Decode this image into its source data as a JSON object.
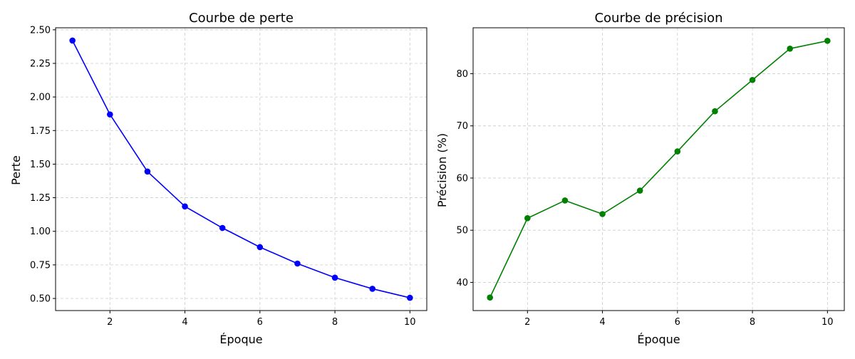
{
  "chart_data": [
    {
      "type": "line",
      "title": "Courbe de perte",
      "xlabel": "Époque",
      "ylabel": "Perte",
      "x": [
        1,
        2,
        3,
        4,
        5,
        6,
        7,
        8,
        9,
        10
      ],
      "series": [
        {
          "values": [
            2.42,
            1.87,
            1.445,
            1.185,
            1.025,
            0.882,
            0.76,
            0.655,
            0.572,
            0.505
          ],
          "color": "#0000ff",
          "marker": "circle"
        }
      ],
      "xlim": [
        0.55,
        10.45
      ],
      "ylim": [
        0.41,
        2.515
      ],
      "xticks": [
        2,
        4,
        6,
        8,
        10
      ],
      "yticks": [
        0.5,
        0.75,
        1.0,
        1.25,
        1.5,
        1.75,
        2.0,
        2.25,
        2.5
      ],
      "xtick_labels": [
        "2",
        "4",
        "6",
        "8",
        "10"
      ],
      "ytick_labels": [
        "0.50",
        "0.75",
        "1.00",
        "1.25",
        "1.50",
        "1.75",
        "2.00",
        "2.25",
        "2.50"
      ],
      "grid": true
    },
    {
      "type": "line",
      "title": "Courbe de précision",
      "xlabel": "Époque",
      "ylabel": "Précision (%)",
      "x": [
        1,
        2,
        3,
        4,
        5,
        6,
        7,
        8,
        9,
        10
      ],
      "series": [
        {
          "values": [
            37.1,
            52.3,
            55.7,
            53.1,
            57.6,
            65.1,
            72.8,
            78.8,
            84.8,
            86.3
          ],
          "color": "#008000",
          "marker": "circle"
        }
      ],
      "xlim": [
        0.55,
        10.45
      ],
      "ylim": [
        34.6,
        88.8
      ],
      "xticks": [
        2,
        4,
        6,
        8,
        10
      ],
      "yticks": [
        40,
        50,
        60,
        70,
        80
      ],
      "xtick_labels": [
        "2",
        "4",
        "6",
        "8",
        "10"
      ],
      "ytick_labels": [
        "40",
        "50",
        "60",
        "70",
        "80"
      ],
      "grid": true
    }
  ]
}
